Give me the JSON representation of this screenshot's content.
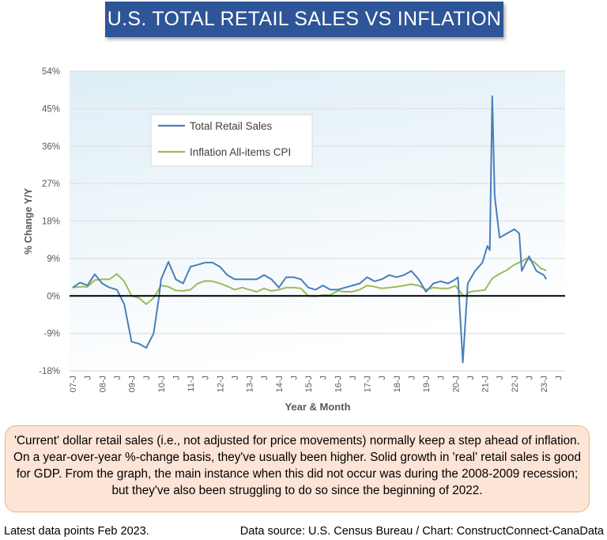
{
  "chart_data": {
    "type": "line",
    "title": "U.S. TOTAL RETAIL SALES VS INFLATION",
    "xlabel": "Year & Month",
    "ylabel": "% Change Y/Y",
    "ylim": [
      -18,
      54
    ],
    "yticks": [
      "-18%",
      "-9%",
      "0%",
      "9%",
      "18%",
      "27%",
      "36%",
      "45%",
      "54%"
    ],
    "xtick_labels": [
      "07-J",
      "J",
      "08-J",
      "J",
      "09-J",
      "J",
      "10-J",
      "J",
      "11-J",
      "J",
      "12-J",
      "J",
      "13-J",
      "J",
      "14-J",
      "J",
      "15-J",
      "J",
      "16-J",
      "J",
      "17-J",
      "J",
      "18-J",
      "J",
      "19-J",
      "J",
      "20-J",
      "J",
      "21-J",
      "J",
      "22-J",
      "J",
      "23-J",
      "J"
    ],
    "grid": true,
    "legend_placement": "top-left",
    "colors": {
      "retail": "#4a7ebb",
      "cpi": "#9bbb59",
      "zero_line": "#000000",
      "banner": "#2e5597"
    },
    "series": [
      {
        "name": "Total Retail Sales",
        "points": [
          [
            "2007-01",
            2
          ],
          [
            "2007-04",
            3.2
          ],
          [
            "2007-07",
            2.5
          ],
          [
            "2007-10",
            5.2
          ],
          [
            "2008-01",
            3
          ],
          [
            "2008-04",
            2
          ],
          [
            "2008-07",
            1.5
          ],
          [
            "2008-10",
            -2
          ],
          [
            "2009-01",
            -11
          ],
          [
            "2009-04",
            -11.5
          ],
          [
            "2009-07",
            -12.5
          ],
          [
            "2009-10",
            -9
          ],
          [
            "2009-12",
            -1
          ],
          [
            "2010-01",
            4
          ],
          [
            "2010-04",
            8.2
          ],
          [
            "2010-07",
            4
          ],
          [
            "2010-10",
            3
          ],
          [
            "2011-01",
            7
          ],
          [
            "2011-04",
            7.5
          ],
          [
            "2011-07",
            8
          ],
          [
            "2011-10",
            8
          ],
          [
            "2012-01",
            7
          ],
          [
            "2012-04",
            5
          ],
          [
            "2012-07",
            4
          ],
          [
            "2012-10",
            4
          ],
          [
            "2013-01",
            4
          ],
          [
            "2013-04",
            4
          ],
          [
            "2013-07",
            5
          ],
          [
            "2013-10",
            4
          ],
          [
            "2014-01",
            2
          ],
          [
            "2014-04",
            4.5
          ],
          [
            "2014-07",
            4.5
          ],
          [
            "2014-10",
            4
          ],
          [
            "2015-01",
            2
          ],
          [
            "2015-04",
            1.5
          ],
          [
            "2015-07",
            2.5
          ],
          [
            "2015-10",
            1.5
          ],
          [
            "2016-01",
            1.5
          ],
          [
            "2016-04",
            2
          ],
          [
            "2016-07",
            2.5
          ],
          [
            "2016-10",
            3
          ],
          [
            "2017-01",
            4.5
          ],
          [
            "2017-04",
            3.5
          ],
          [
            "2017-07",
            4
          ],
          [
            "2017-10",
            5
          ],
          [
            "2018-01",
            4.5
          ],
          [
            "2018-04",
            5
          ],
          [
            "2018-07",
            6
          ],
          [
            "2018-10",
            4
          ],
          [
            "2019-01",
            1
          ],
          [
            "2019-04",
            3
          ],
          [
            "2019-07",
            3.5
          ],
          [
            "2019-10",
            3
          ],
          [
            "2020-01",
            4
          ],
          [
            "2020-02",
            4.5
          ],
          [
            "2020-04",
            -16
          ],
          [
            "2020-06",
            3
          ],
          [
            "2020-09",
            6
          ],
          [
            "2020-12",
            8
          ],
          [
            "2021-02",
            12
          ],
          [
            "2021-03",
            11
          ],
          [
            "2021-04",
            48
          ],
          [
            "2021-05",
            24
          ],
          [
            "2021-07",
            14
          ],
          [
            "2021-10",
            15
          ],
          [
            "2022-01",
            16
          ],
          [
            "2022-03",
            15
          ],
          [
            "2022-04",
            6
          ],
          [
            "2022-07",
            9.5
          ],
          [
            "2022-10",
            6
          ],
          [
            "2023-01",
            5
          ],
          [
            "2023-02",
            4
          ]
        ]
      },
      {
        "name": "Inflation All-items CPI",
        "points": [
          [
            "2007-01",
            2
          ],
          [
            "2007-04",
            2.2
          ],
          [
            "2007-07",
            2.2
          ],
          [
            "2007-10",
            3.8
          ],
          [
            "2008-01",
            4
          ],
          [
            "2008-04",
            4
          ],
          [
            "2008-07",
            5.3
          ],
          [
            "2008-10",
            3.5
          ],
          [
            "2009-01",
            0
          ],
          [
            "2009-04",
            -0.5
          ],
          [
            "2009-07",
            -2
          ],
          [
            "2009-10",
            -0.5
          ],
          [
            "2010-01",
            2.5
          ],
          [
            "2010-04",
            2.2
          ],
          [
            "2010-07",
            1.3
          ],
          [
            "2010-10",
            1.2
          ],
          [
            "2011-01",
            1.5
          ],
          [
            "2011-04",
            3
          ],
          [
            "2011-07",
            3.6
          ],
          [
            "2011-10",
            3.5
          ],
          [
            "2012-01",
            3
          ],
          [
            "2012-04",
            2.3
          ],
          [
            "2012-07",
            1.5
          ],
          [
            "2012-10",
            2
          ],
          [
            "2013-01",
            1.5
          ],
          [
            "2013-04",
            1
          ],
          [
            "2013-07",
            1.8
          ],
          [
            "2013-10",
            1.2
          ],
          [
            "2014-01",
            1.5
          ],
          [
            "2014-04",
            2
          ],
          [
            "2014-07",
            2
          ],
          [
            "2014-10",
            1.8
          ],
          [
            "2015-01",
            0
          ],
          [
            "2015-04",
            -0.1
          ],
          [
            "2015-07",
            0.2
          ],
          [
            "2015-10",
            0.2
          ],
          [
            "2016-01",
            1.2
          ],
          [
            "2016-04",
            1
          ],
          [
            "2016-07",
            1
          ],
          [
            "2016-10",
            1.5
          ],
          [
            "2017-01",
            2.5
          ],
          [
            "2017-04",
            2.2
          ],
          [
            "2017-07",
            1.8
          ],
          [
            "2017-10",
            2
          ],
          [
            "2018-01",
            2.2
          ],
          [
            "2018-04",
            2.5
          ],
          [
            "2018-07",
            2.8
          ],
          [
            "2018-10",
            2.5
          ],
          [
            "2019-01",
            1.5
          ],
          [
            "2019-04",
            2
          ],
          [
            "2019-07",
            1.8
          ],
          [
            "2019-10",
            1.8
          ],
          [
            "2020-01",
            2.4
          ],
          [
            "2020-04",
            0.2
          ],
          [
            "2020-05",
            0
          ],
          [
            "2020-07",
            1
          ],
          [
            "2020-10",
            1.2
          ],
          [
            "2021-01",
            1.4
          ],
          [
            "2021-04",
            4.2
          ],
          [
            "2021-07",
            5.3
          ],
          [
            "2021-10",
            6.2
          ],
          [
            "2022-01",
            7.5
          ],
          [
            "2022-04",
            8.3
          ],
          [
            "2022-06",
            9
          ],
          [
            "2022-09",
            8.2
          ],
          [
            "2022-12",
            6.5
          ],
          [
            "2023-01",
            6.4
          ],
          [
            "2023-02",
            6
          ]
        ]
      }
    ]
  },
  "note": "'Current' dollar retail sales (i.e., not adjusted for price movements) normally keep a step ahead of inflation. On a year-over-year %-change basis, they've usually been higher. Solid growth in 'real' retail sales is good for GDP. From the graph, the main instance when this did not occur was during the 2008-2009 recession; but they've also been struggling to do so since the beginning of 2022.",
  "footer": {
    "left": "Latest data points Feb 2023.",
    "right": "Data source: U.S. Census Bureau / Chart: ConstructConnect-CanaData"
  }
}
